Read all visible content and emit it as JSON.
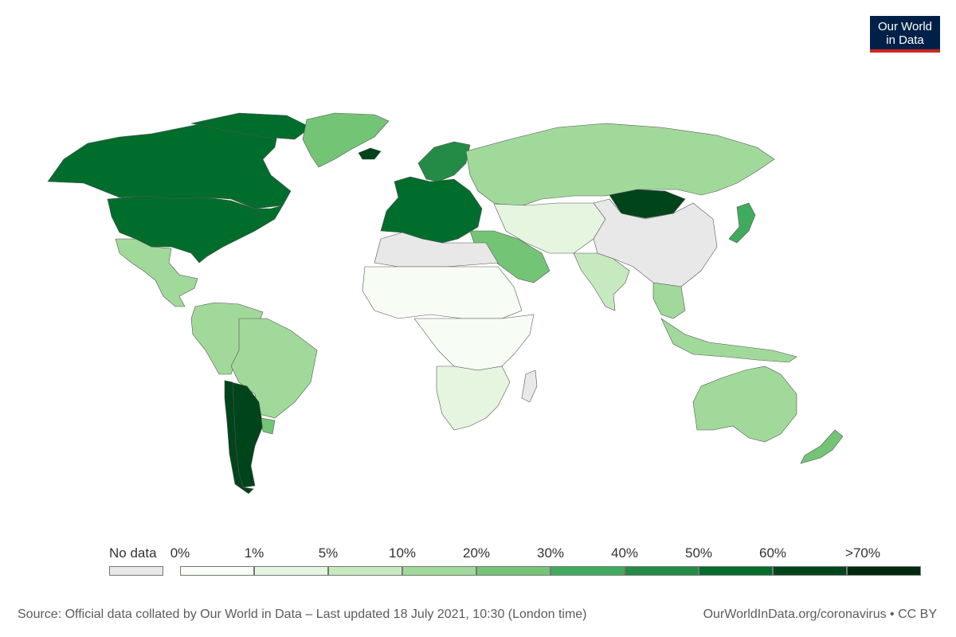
{
  "logo": {
    "line1": "Our World",
    "line2": "in Data"
  },
  "legend": {
    "no_data_label": "No data",
    "no_data_color": "#e8e8e8",
    "bins": [
      {
        "label": "0%",
        "color": "#f7fcf5"
      },
      {
        "label": "1%",
        "color": "#e5f5e0"
      },
      {
        "label": "5%",
        "color": "#c7e9c0"
      },
      {
        "label": "10%",
        "color": "#a1d99b"
      },
      {
        "label": "20%",
        "color": "#74c476"
      },
      {
        "label": "30%",
        "color": "#41ab5d"
      },
      {
        "label": "40%",
        "color": "#238b45"
      },
      {
        "label": "50%",
        "color": "#006d2c"
      },
      {
        "label": "60%",
        "color": "#00441b"
      },
      {
        "label": ">70%",
        "color": "#002910"
      }
    ]
  },
  "footer": {
    "source": "Source: Official data collated by Our World in Data – Last updated 18 July 2021, 10:30 (London time)",
    "url": "OurWorldInData.org/coronavirus • CC BY"
  },
  "regions": [
    {
      "name": "Canada",
      "color": "#006d2c"
    },
    {
      "name": "United States",
      "color": "#006d2c"
    },
    {
      "name": "Greenland",
      "color": "#74c476"
    },
    {
      "name": "Mexico",
      "color": "#a1d99b"
    },
    {
      "name": "South America North",
      "color": "#a1d99b"
    },
    {
      "name": "Brazil",
      "color": "#a1d99b"
    },
    {
      "name": "Chile",
      "color": "#00441b"
    },
    {
      "name": "Uruguay",
      "color": "#00441b"
    },
    {
      "name": "Argentina",
      "color": "#74c476"
    },
    {
      "name": "Europe West",
      "color": "#006d2c"
    },
    {
      "name": "Iceland",
      "color": "#00441b"
    },
    {
      "name": "Scandinavia",
      "color": "#238b45"
    },
    {
      "name": "Russia",
      "color": "#a1d99b"
    },
    {
      "name": "Mongolia",
      "color": "#00441b"
    },
    {
      "name": "China",
      "color": "#e8e8e8"
    },
    {
      "name": "Central Asia",
      "color": "#e5f5e0"
    },
    {
      "name": "Middle East",
      "color": "#74c476"
    },
    {
      "name": "India",
      "color": "#c7e9c0"
    },
    {
      "name": "Southeast Asia",
      "color": "#a1d99b"
    },
    {
      "name": "Japan",
      "color": "#41ab5d"
    },
    {
      "name": "North Africa",
      "color": "#e8e8e8"
    },
    {
      "name": "Sahel",
      "color": "#f7fcf5"
    },
    {
      "name": "Central Africa",
      "color": "#f7fcf5"
    },
    {
      "name": "Southern Africa",
      "color": "#e5f5e0"
    },
    {
      "name": "Madagascar",
      "color": "#e8e8e8"
    },
    {
      "name": "Australia",
      "color": "#a1d99b"
    },
    {
      "name": "New Zealand",
      "color": "#74c476"
    }
  ]
}
